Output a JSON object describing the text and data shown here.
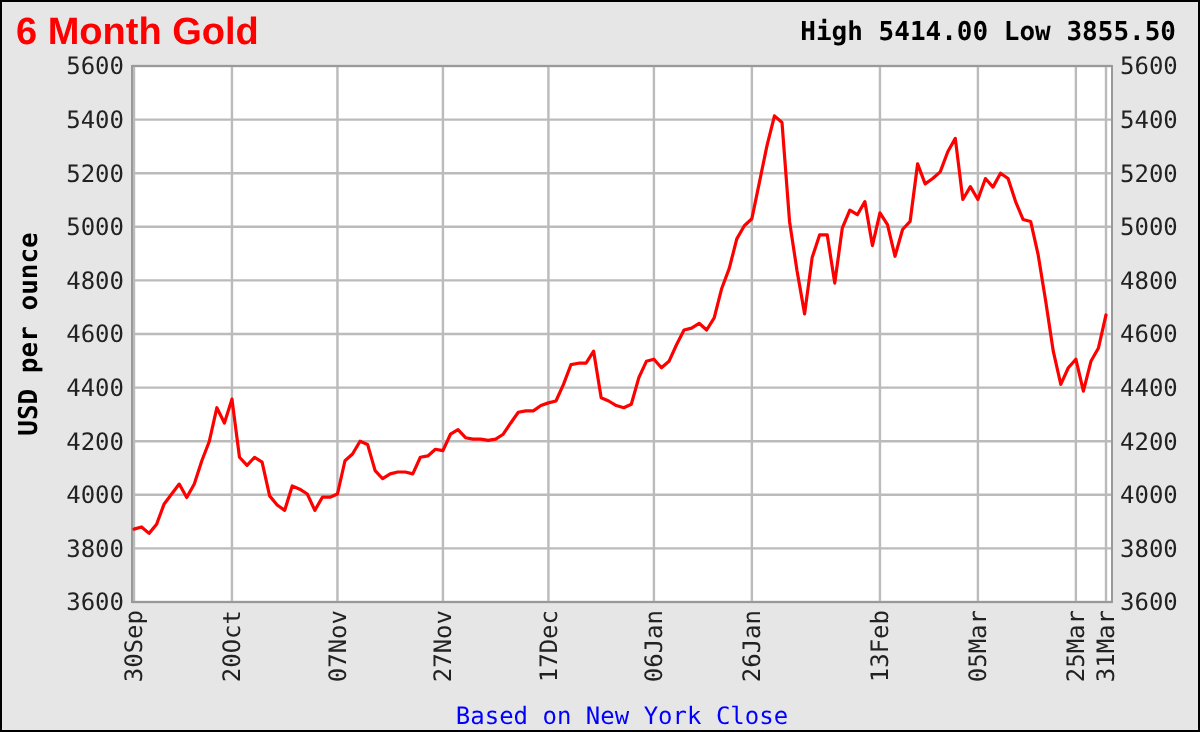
{
  "chart_data": {
    "type": "line",
    "title": "6 Month Gold",
    "subtitle": "High 5414.00 Low 3855.50",
    "ylabel": "USD per ounce",
    "annotations": [
      "Based on New York Close"
    ],
    "categories": [
      "30Sep",
      null,
      null,
      null,
      null,
      null,
      null,
      null,
      null,
      null,
      null,
      null,
      null,
      "20Oct",
      null,
      null,
      null,
      null,
      null,
      null,
      null,
      null,
      null,
      null,
      null,
      null,
      null,
      "07Nov",
      null,
      null,
      null,
      null,
      null,
      null,
      null,
      null,
      null,
      null,
      null,
      null,
      null,
      "27Nov",
      null,
      null,
      null,
      null,
      null,
      null,
      null,
      null,
      null,
      null,
      null,
      null,
      null,
      "17Dec",
      null,
      null,
      null,
      null,
      null,
      null,
      null,
      null,
      null,
      null,
      null,
      null,
      null,
      "06Jan",
      null,
      null,
      null,
      null,
      null,
      null,
      null,
      null,
      null,
      null,
      null,
      null,
      "26Jan",
      null,
      null,
      null,
      null,
      null,
      null,
      null,
      null,
      null,
      null,
      null,
      null,
      null,
      null,
      null,
      null,
      "13Feb",
      null,
      null,
      null,
      null,
      null,
      null,
      null,
      null,
      null,
      null,
      null,
      null,
      "05Mar",
      null,
      null,
      null,
      null,
      null,
      null,
      null,
      null,
      null,
      null,
      null,
      null,
      "25Mar",
      null,
      null,
      null,
      "31Mar"
    ],
    "series": [
      {
        "color": "#ff0000",
        "values": [
          3872,
          3880,
          3856,
          3890,
          3966,
          4003,
          4040,
          3990,
          4040,
          4127,
          4200,
          4325,
          4268,
          4357,
          4140,
          4110,
          4140,
          4122,
          3996,
          3962,
          3942,
          4033,
          4021,
          4003,
          3942,
          3991,
          3991,
          4003,
          4127,
          4152,
          4200,
          4188,
          4090,
          4060,
          4078,
          4085,
          4085,
          4078,
          4140,
          4145,
          4170,
          4165,
          4226,
          4243,
          4213,
          4208,
          4208,
          4203,
          4208,
          4226,
          4268,
          4308,
          4313,
          4313,
          4333,
          4343,
          4350,
          4412,
          4486,
          4491,
          4491,
          4536,
          4362,
          4350,
          4333,
          4325,
          4338,
          4437,
          4498,
          4506,
          4474,
          4498,
          4560,
          4615,
          4622,
          4640,
          4615,
          4660,
          4770,
          4845,
          4955,
          5004,
          5030,
          5166,
          5302,
          5414,
          5389,
          5020,
          4835,
          4675,
          4885,
          4970,
          4970,
          4790,
          4995,
          5062,
          5045,
          5094,
          4930,
          5052,
          5008,
          4890,
          4990,
          5020,
          5235,
          5160,
          5180,
          5205,
          5280,
          5330,
          5102,
          5150,
          5102,
          5180,
          5148,
          5200,
          5180,
          5094,
          5027,
          5020,
          4895,
          4722,
          4536,
          4412,
          4474,
          4506,
          4387,
          4498,
          4548,
          4671
        ]
      }
    ],
    "ylim": [
      3600,
      5600
    ],
    "yticks": [
      3600,
      3800,
      4000,
      4200,
      4400,
      4600,
      4800,
      5000,
      5200,
      5400,
      5600
    ],
    "y2lim": [
      3600,
      5600
    ],
    "y2ticks": [
      3600,
      3800,
      4000,
      4200,
      4400,
      4600,
      4800,
      5000,
      5200,
      5400,
      5600
    ],
    "grid": true,
    "line_style": "solid",
    "marker": "none"
  }
}
